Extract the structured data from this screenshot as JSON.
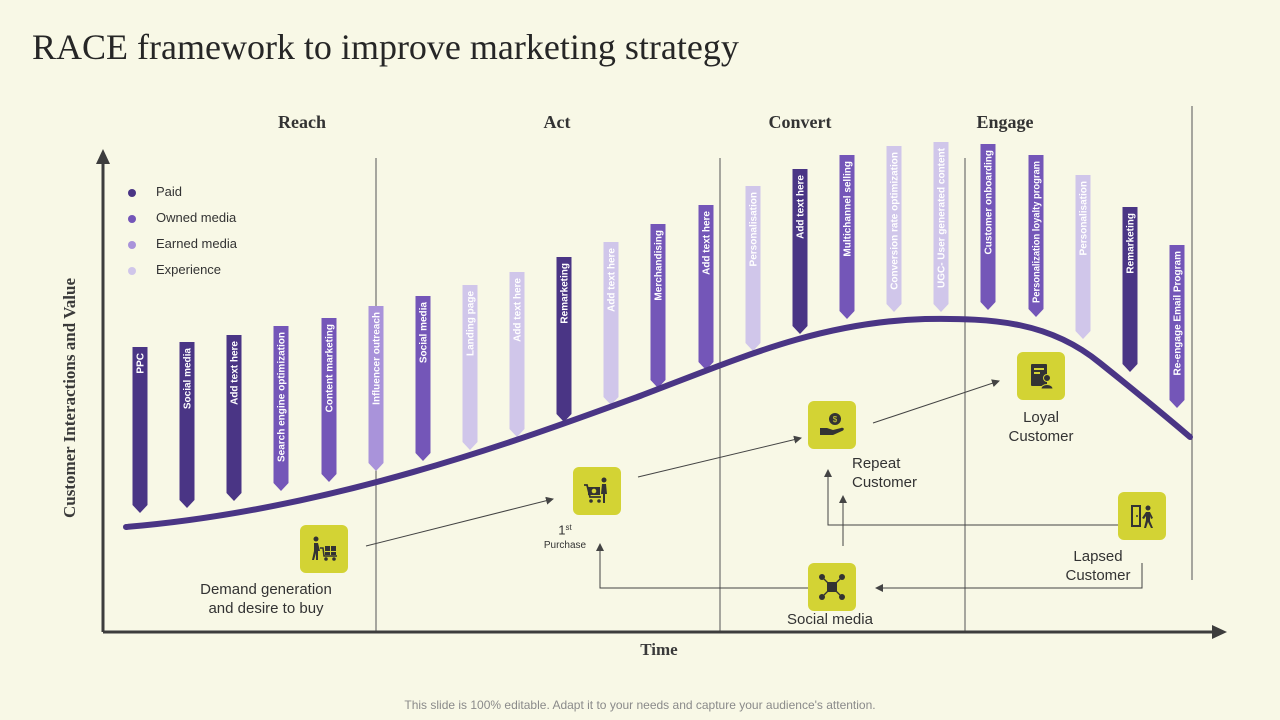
{
  "title": "RACE framework to improve marketing strategy",
  "phases": [
    "Reach",
    "Act",
    "Convert",
    "Engage"
  ],
  "legend": [
    {
      "label": "Paid",
      "color": "#4a3585"
    },
    {
      "label": "Owned media",
      "color": "#7456b8"
    },
    {
      "label": "Earned media",
      "color": "#a993da"
    },
    {
      "label": "Experience",
      "color": "#d0c6ea"
    }
  ],
  "axes": {
    "y_label": "Customer Interactions and Value",
    "x_label": "Time"
  },
  "bars": [
    {
      "label": "PPC",
      "category": "Paid"
    },
    {
      "label": "Social media",
      "category": "Paid"
    },
    {
      "label": "Add text here",
      "category": "Paid"
    },
    {
      "label": "Search engine optimization",
      "category": "Owned media"
    },
    {
      "label": "Content marketing",
      "category": "Owned media"
    },
    {
      "label": "Influencer outreach",
      "category": "Earned media"
    },
    {
      "label": "Social media",
      "category": "Owned media"
    },
    {
      "label": "Landing page",
      "category": "Experience"
    },
    {
      "label": "Add text here",
      "category": "Experience"
    },
    {
      "label": "Remarketing",
      "category": "Paid"
    },
    {
      "label": "Add text here",
      "category": "Experience"
    },
    {
      "label": "Merchandising",
      "category": "Owned media"
    },
    {
      "label": "Add text here",
      "category": "Owned media"
    },
    {
      "label": "Personalisation",
      "category": "Experience"
    },
    {
      "label": "Add text here",
      "category": "Paid"
    },
    {
      "label": "Multichannel selling",
      "category": "Owned media"
    },
    {
      "label": "Conversion rate optimization",
      "category": "Experience"
    },
    {
      "label": "UGC- User generated content",
      "category": "Experience"
    },
    {
      "label": "Customer onboarding",
      "category": "Owned media"
    },
    {
      "label": "Personalization loyalty program",
      "category": "Owned media"
    },
    {
      "label": "Personalisation",
      "category": "Experience"
    },
    {
      "label": "Remarketing",
      "category": "Paid"
    },
    {
      "label": "Re-engage Email Program",
      "category": "Owned media"
    }
  ],
  "stages": {
    "demand": "Demand generation\nand desire to buy",
    "purchase_num": "1",
    "purchase_sup": "st",
    "purchase_label": "Purchase",
    "repeat": "Repeat\nCustomer",
    "loyal": "Loyal\nCustomer",
    "lapsed": "Lapsed\nCustomer",
    "social": "Social media"
  },
  "footer": "This slide is 100% editable. Adapt it to your needs and capture your audience's attention."
}
